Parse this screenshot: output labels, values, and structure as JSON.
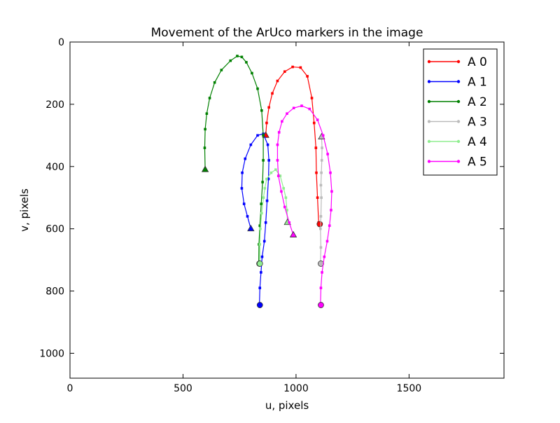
{
  "chart_data": {
    "type": "line",
    "title": "Movement of the ArUco markers in the image",
    "xlabel": "u, pixels",
    "ylabel": "v, pixels",
    "xlim": [
      0,
      1920
    ],
    "ylim": [
      1080,
      0
    ],
    "y_inverted": true,
    "x_ticks": [
      "0",
      "500",
      "1000",
      "1500"
    ],
    "x_tick_values": [
      0,
      500,
      1000,
      1500
    ],
    "y_ticks": [
      "0",
      "200",
      "400",
      "600",
      "800",
      "1000"
    ],
    "y_tick_values": [
      0,
      200,
      400,
      600,
      800,
      1000
    ],
    "legend_position": "top-right",
    "series": [
      {
        "name": "A 0",
        "color": "#ff0000",
        "points": [
          [
            1100,
            580
          ],
          [
            1095,
            500
          ],
          [
            1090,
            420
          ],
          [
            1088,
            340
          ],
          [
            1080,
            260
          ],
          [
            1070,
            180
          ],
          [
            1050,
            110
          ],
          [
            1020,
            82
          ],
          [
            985,
            80
          ],
          [
            950,
            95
          ],
          [
            918,
            125
          ],
          [
            895,
            165
          ],
          [
            880,
            210
          ],
          [
            870,
            260
          ],
          [
            866,
            300
          ]
        ],
        "start_marker": [
          1105,
          585
        ],
        "end_marker": [
          866,
          300
        ]
      },
      {
        "name": "A 1",
        "color": "#0000ff",
        "points": [
          [
            838,
            845
          ],
          [
            840,
            790
          ],
          [
            845,
            740
          ],
          [
            850,
            690
          ],
          [
            860,
            640
          ],
          [
            866,
            580
          ],
          [
            872,
            510
          ],
          [
            878,
            440
          ],
          [
            880,
            380
          ],
          [
            875,
            330
          ],
          [
            855,
            295
          ],
          [
            830,
            300
          ],
          [
            800,
            330
          ],
          [
            775,
            375
          ],
          [
            762,
            420
          ],
          [
            760,
            470
          ],
          [
            770,
            520
          ],
          [
            785,
            560
          ],
          [
            800,
            600
          ]
        ],
        "start_marker": [
          840,
          845
        ],
        "end_marker": [
          800,
          600
        ]
      },
      {
        "name": "A 2",
        "color": "#008000",
        "points": [
          [
            835,
            710
          ],
          [
            836,
            650
          ],
          [
            840,
            590
          ],
          [
            846,
            520
          ],
          [
            852,
            450
          ],
          [
            855,
            380
          ],
          [
            855,
            300
          ],
          [
            848,
            220
          ],
          [
            830,
            150
          ],
          [
            805,
            100
          ],
          [
            780,
            65
          ],
          [
            760,
            48
          ],
          [
            740,
            45
          ],
          [
            710,
            60
          ],
          [
            670,
            90
          ],
          [
            640,
            130
          ],
          [
            618,
            180
          ],
          [
            605,
            230
          ],
          [
            598,
            280
          ],
          [
            596,
            340
          ],
          [
            598,
            410
          ]
        ],
        "start_marker": [
          838,
          712
        ],
        "end_marker": [
          598,
          410
        ]
      },
      {
        "name": "A 3",
        "color": "#bbbbbb",
        "points": [
          [
            1108,
            710
          ],
          [
            1110,
            660
          ],
          [
            1108,
            600
          ],
          [
            1110,
            560
          ],
          [
            1112,
            500
          ],
          [
            1110,
            460
          ],
          [
            1112,
            420
          ],
          [
            1114,
            380
          ],
          [
            1115,
            340
          ],
          [
            1113,
            305
          ]
        ],
        "start_marker": [
          1110,
          712
        ],
        "end_marker": [
          1113,
          305
        ]
      },
      {
        "name": "A 4",
        "color": "#90ee90",
        "points": [
          [
            840,
            710
          ],
          [
            840,
            650
          ],
          [
            842,
            600
          ],
          [
            848,
            550
          ],
          [
            856,
            500
          ],
          [
            862,
            470
          ],
          [
            870,
            440
          ],
          [
            890,
            420
          ],
          [
            910,
            410
          ],
          [
            930,
            430
          ],
          [
            945,
            470
          ],
          [
            955,
            500
          ],
          [
            960,
            540
          ],
          [
            962,
            580
          ]
        ],
        "start_marker": [
          840,
          712
        ],
        "end_marker": [
          962,
          580
        ]
      },
      {
        "name": "A 5",
        "color": "#ff00ff",
        "points": [
          [
            1108,
            845
          ],
          [
            1110,
            790
          ],
          [
            1115,
            740
          ],
          [
            1125,
            690
          ],
          [
            1138,
            640
          ],
          [
            1148,
            590
          ],
          [
            1155,
            540
          ],
          [
            1158,
            480
          ],
          [
            1152,
            420
          ],
          [
            1140,
            360
          ],
          [
            1120,
            300
          ],
          [
            1095,
            250
          ],
          [
            1060,
            215
          ],
          [
            1025,
            205
          ],
          [
            990,
            212
          ],
          [
            960,
            230
          ],
          [
            938,
            255
          ],
          [
            925,
            290
          ],
          [
            918,
            330
          ],
          [
            918,
            380
          ],
          [
            922,
            430
          ],
          [
            935,
            480
          ],
          [
            950,
            530
          ],
          [
            970,
            580
          ],
          [
            988,
            620
          ]
        ],
        "start_marker": [
          1110,
          845
        ],
        "end_marker": [
          988,
          620
        ]
      }
    ]
  }
}
